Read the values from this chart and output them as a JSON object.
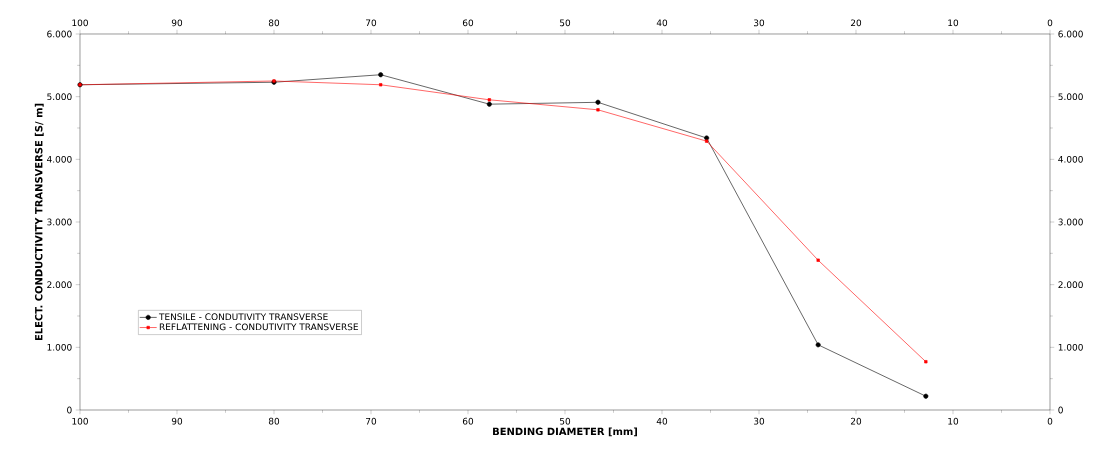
{
  "chart_data": {
    "type": "line",
    "xlabel": "BENDING DIAMETER [mm]",
    "ylabel": "ELECT. CONDUCTIVITY TRANSVERSE [S/ m]",
    "xlim": [
      100,
      0
    ],
    "xticks": [
      100,
      90,
      80,
      70,
      60,
      50,
      40,
      30,
      20,
      10,
      0
    ],
    "x2lim": [
      100,
      0
    ],
    "x2ticks": [
      100,
      90,
      80,
      70,
      60,
      50,
      40,
      30,
      20,
      10,
      0
    ],
    "ylim": [
      0,
      6000
    ],
    "yticks": [
      0,
      {
        "value": 1000,
        "label": "1.000"
      },
      {
        "value": 2000,
        "label": "2.000"
      },
      {
        "value": 3000,
        "label": "3.000"
      },
      {
        "value": 4000,
        "label": "4.000"
      },
      {
        "value": 5000,
        "label": "5.000"
      },
      {
        "value": 6000,
        "label": "6.000"
      }
    ],
    "y2lim": [
      0,
      6000
    ],
    "y2ticks": [
      0,
      {
        "value": 1000,
        "label": "1.000"
      },
      {
        "value": 2000,
        "label": "2.000"
      },
      {
        "value": 3000,
        "label": "3.000"
      },
      {
        "value": 4000,
        "label": "4.000"
      },
      {
        "value": 5000,
        "label": "5.000"
      },
      {
        "value": 6000,
        "label": "6.000"
      }
    ],
    "x": [
      100,
      80,
      69,
      57.8,
      46.6,
      35.4,
      23.9,
      12.8
    ],
    "legend": "left",
    "line_style": "solid",
    "series": [
      {
        "name": "TENSILE - CONDUTIVITY TRANSVERSE",
        "color": "#000000",
        "marker": "circle",
        "values": [
          5190,
          5230,
          5350,
          4880,
          4910,
          4340,
          1040,
          220
        ]
      },
      {
        "name": "REFLATTENING - CONDUTIVITY TRANSVERSE",
        "color": "#ff0000",
        "marker": "square",
        "values": [
          5190,
          5250,
          5190,
          4950,
          4790,
          4290,
          2390,
          770
        ]
      }
    ]
  }
}
